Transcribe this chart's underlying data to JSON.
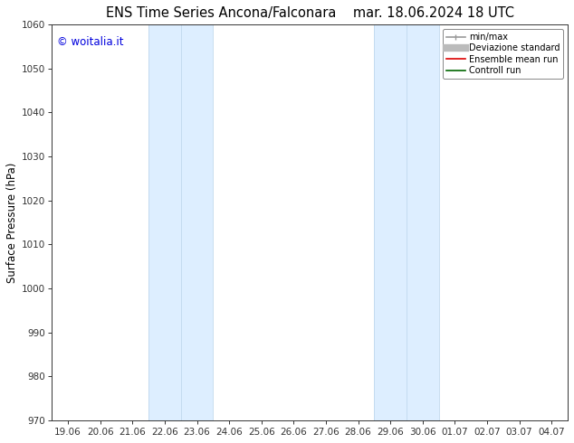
{
  "title_left": "ENS Time Series Ancona/Falconara",
  "title_right": "mar. 18.06.2024 18 UTC",
  "ylabel": "Surface Pressure (hPa)",
  "ylim": [
    970,
    1060
  ],
  "yticks": [
    970,
    980,
    990,
    1000,
    1010,
    1020,
    1030,
    1040,
    1050,
    1060
  ],
  "xtick_labels": [
    "19.06",
    "20.06",
    "21.06",
    "22.06",
    "23.06",
    "24.06",
    "25.06",
    "26.06",
    "27.06",
    "28.06",
    "29.06",
    "30.06",
    "01.07",
    "02.07",
    "03.07",
    "04.07"
  ],
  "watermark": "© woitalia.it",
  "watermark_color": "#0000dd",
  "shaded_bands": [
    {
      "xstart_idx": 3,
      "xend_idx": 5
    },
    {
      "xstart_idx": 10,
      "xend_idx": 12
    }
  ],
  "shaded_color": "#ddeeff",
  "shaded_edge_color": "#c0d8ee",
  "background_color": "#ffffff",
  "legend_items": [
    {
      "label": "min/max",
      "color": "#999999",
      "lw": 1.2
    },
    {
      "label": "Deviazione standard",
      "color": "#bbbbbb",
      "lw": 6
    },
    {
      "label": "Ensemble mean run",
      "color": "#dd0000",
      "lw": 1.2
    },
    {
      "label": "Controll run",
      "color": "#006600",
      "lw": 1.2
    }
  ],
  "title_fontsize": 10.5,
  "tick_fontsize": 7.5,
  "ylabel_fontsize": 8.5
}
